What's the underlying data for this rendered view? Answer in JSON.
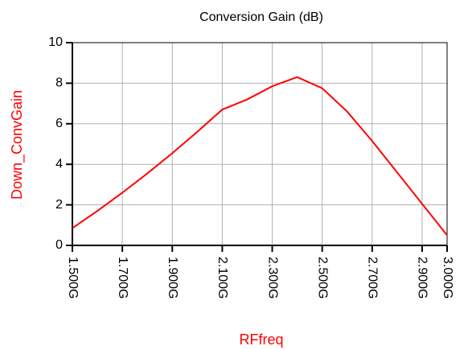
{
  "chart_data": {
    "type": "line",
    "title": "Conversion Gain (dB)",
    "x_label": "RFfreq",
    "y_label": "Down_ConvGain",
    "x": [
      1.5,
      1.6,
      1.7,
      1.8,
      1.9,
      2.0,
      2.1,
      2.2,
      2.3,
      2.4,
      2.5,
      2.6,
      2.7,
      2.8,
      2.9,
      3.0
    ],
    "series": [
      {
        "name": "Down_ConvGain",
        "color": "#ff0000",
        "values": [
          0.85,
          1.7,
          2.6,
          3.55,
          4.55,
          5.6,
          6.7,
          7.2,
          7.85,
          8.3,
          7.75,
          6.6,
          5.15,
          3.6,
          2.05,
          0.5
        ]
      }
    ],
    "xlim": [
      1.5,
      3.0
    ],
    "xticks": [
      {
        "value": 1.5,
        "label": "1.500G"
      },
      {
        "value": 1.7,
        "label": "1.700G"
      },
      {
        "value": 1.9,
        "label": "1.900G"
      },
      {
        "value": 2.1,
        "label": "2.100G"
      },
      {
        "value": 2.3,
        "label": "2.300G"
      },
      {
        "value": 2.5,
        "label": "2.500G"
      },
      {
        "value": 2.7,
        "label": "2.700G"
      },
      {
        "value": 2.9,
        "label": "2.900G"
      },
      {
        "value": 3.0,
        "label": "3.000G"
      }
    ],
    "ylim": [
      0,
      10
    ],
    "yticks": [
      0,
      2,
      4,
      6,
      8,
      10
    ],
    "grid": true
  }
}
